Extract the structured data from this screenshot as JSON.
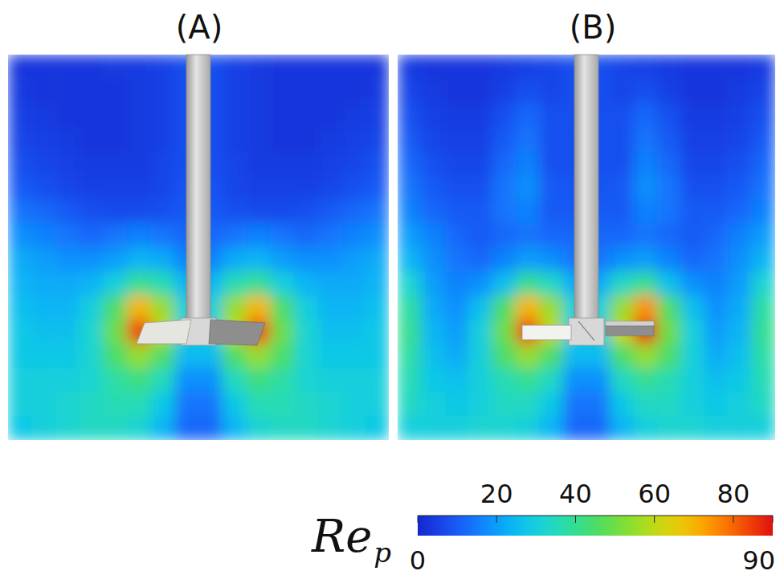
{
  "chart_data": {
    "type": "heatmap",
    "panels": [
      {
        "title": "(A)",
        "cells": [
          [
            3,
            3,
            3,
            3,
            4,
            4,
            5,
            8,
            8,
            5,
            4,
            3,
            3,
            3,
            3,
            3
          ],
          [
            4,
            3,
            3,
            3,
            3,
            4,
            5,
            8,
            8,
            5,
            4,
            3,
            3,
            3,
            3,
            4
          ],
          [
            5,
            4,
            3,
            3,
            3,
            4,
            5,
            8,
            8,
            5,
            4,
            3,
            3,
            3,
            4,
            5
          ],
          [
            6,
            5,
            4,
            3,
            3,
            4,
            5,
            8,
            8,
            5,
            4,
            3,
            3,
            4,
            5,
            6
          ],
          [
            8,
            6,
            5,
            4,
            4,
            4,
            6,
            8,
            8,
            6,
            4,
            4,
            4,
            5,
            6,
            8
          ],
          [
            10,
            8,
            6,
            5,
            5,
            5,
            6,
            9,
            9,
            6,
            5,
            5,
            5,
            6,
            8,
            10
          ],
          [
            14,
            12,
            10,
            8,
            7,
            7,
            8,
            10,
            10,
            8,
            7,
            7,
            8,
            10,
            12,
            14
          ],
          [
            18,
            16,
            14,
            12,
            14,
            16,
            14,
            12,
            12,
            14,
            16,
            14,
            12,
            14,
            16,
            18
          ],
          [
            22,
            20,
            18,
            18,
            20,
            24,
            22,
            16,
            16,
            22,
            24,
            20,
            18,
            18,
            20,
            22
          ],
          [
            24,
            22,
            22,
            24,
            30,
            40,
            36,
            24,
            24,
            36,
            40,
            30,
            24,
            22,
            22,
            24
          ],
          [
            26,
            24,
            24,
            30,
            45,
            70,
            55,
            30,
            30,
            55,
            70,
            45,
            30,
            24,
            24,
            26
          ],
          [
            28,
            26,
            26,
            32,
            50,
            85,
            60,
            30,
            30,
            60,
            85,
            50,
            32,
            26,
            26,
            28
          ],
          [
            28,
            28,
            28,
            32,
            45,
            55,
            45,
            25,
            25,
            45,
            55,
            45,
            32,
            28,
            28,
            28
          ],
          [
            30,
            30,
            30,
            32,
            38,
            42,
            35,
            18,
            18,
            35,
            42,
            38,
            32,
            30,
            30,
            30
          ],
          [
            30,
            30,
            32,
            34,
            36,
            36,
            28,
            14,
            14,
            28,
            36,
            36,
            34,
            32,
            30,
            30
          ],
          [
            28,
            30,
            32,
            34,
            34,
            32,
            24,
            12,
            12,
            24,
            32,
            34,
            34,
            32,
            30,
            28
          ]
        ]
      },
      {
        "title": "(B)",
        "cells": [
          [
            4,
            3,
            3,
            3,
            4,
            5,
            6,
            8,
            8,
            6,
            5,
            4,
            3,
            3,
            3,
            4
          ],
          [
            6,
            4,
            3,
            3,
            5,
            8,
            6,
            8,
            8,
            6,
            8,
            5,
            3,
            3,
            4,
            6
          ],
          [
            8,
            5,
            4,
            4,
            8,
            12,
            8,
            8,
            8,
            8,
            12,
            8,
            4,
            4,
            5,
            8
          ],
          [
            10,
            6,
            5,
            5,
            10,
            14,
            8,
            8,
            8,
            8,
            14,
            10,
            5,
            5,
            6,
            10
          ],
          [
            12,
            8,
            6,
            6,
            12,
            16,
            8,
            8,
            8,
            8,
            16,
            12,
            6,
            6,
            8,
            12
          ],
          [
            14,
            10,
            8,
            8,
            14,
            18,
            10,
            9,
            9,
            10,
            18,
            14,
            8,
            8,
            10,
            14
          ],
          [
            16,
            12,
            10,
            10,
            14,
            16,
            10,
            10,
            10,
            10,
            16,
            14,
            10,
            10,
            12,
            16
          ],
          [
            20,
            16,
            12,
            10,
            12,
            14,
            12,
            12,
            12,
            12,
            14,
            12,
            10,
            12,
            16,
            20
          ],
          [
            24,
            18,
            14,
            12,
            16,
            20,
            18,
            14,
            14,
            18,
            20,
            16,
            12,
            14,
            18,
            24
          ],
          [
            32,
            20,
            16,
            18,
            26,
            40,
            34,
            22,
            22,
            34,
            40,
            26,
            18,
            16,
            20,
            32
          ],
          [
            38,
            22,
            18,
            26,
            45,
            70,
            55,
            30,
            30,
            55,
            75,
            45,
            26,
            18,
            22,
            38
          ],
          [
            40,
            24,
            20,
            30,
            50,
            85,
            60,
            30,
            30,
            60,
            88,
            50,
            30,
            20,
            24,
            40
          ],
          [
            38,
            26,
            22,
            30,
            45,
            55,
            45,
            25,
            25,
            45,
            55,
            45,
            30,
            22,
            26,
            38
          ],
          [
            36,
            28,
            26,
            30,
            36,
            40,
            34,
            18,
            18,
            34,
            40,
            36,
            30,
            26,
            28,
            36
          ],
          [
            34,
            30,
            28,
            30,
            34,
            34,
            28,
            14,
            14,
            28,
            34,
            34,
            30,
            28,
            30,
            34
          ],
          [
            30,
            30,
            30,
            32,
            32,
            30,
            24,
            12,
            12,
            24,
            30,
            32,
            32,
            30,
            30,
            30
          ]
        ]
      }
    ],
    "colorbar": {
      "title": "Re",
      "title_subscript": "p",
      "range": [
        0,
        90
      ],
      "ticks": [
        0,
        20,
        40,
        60,
        80,
        90
      ]
    }
  }
}
